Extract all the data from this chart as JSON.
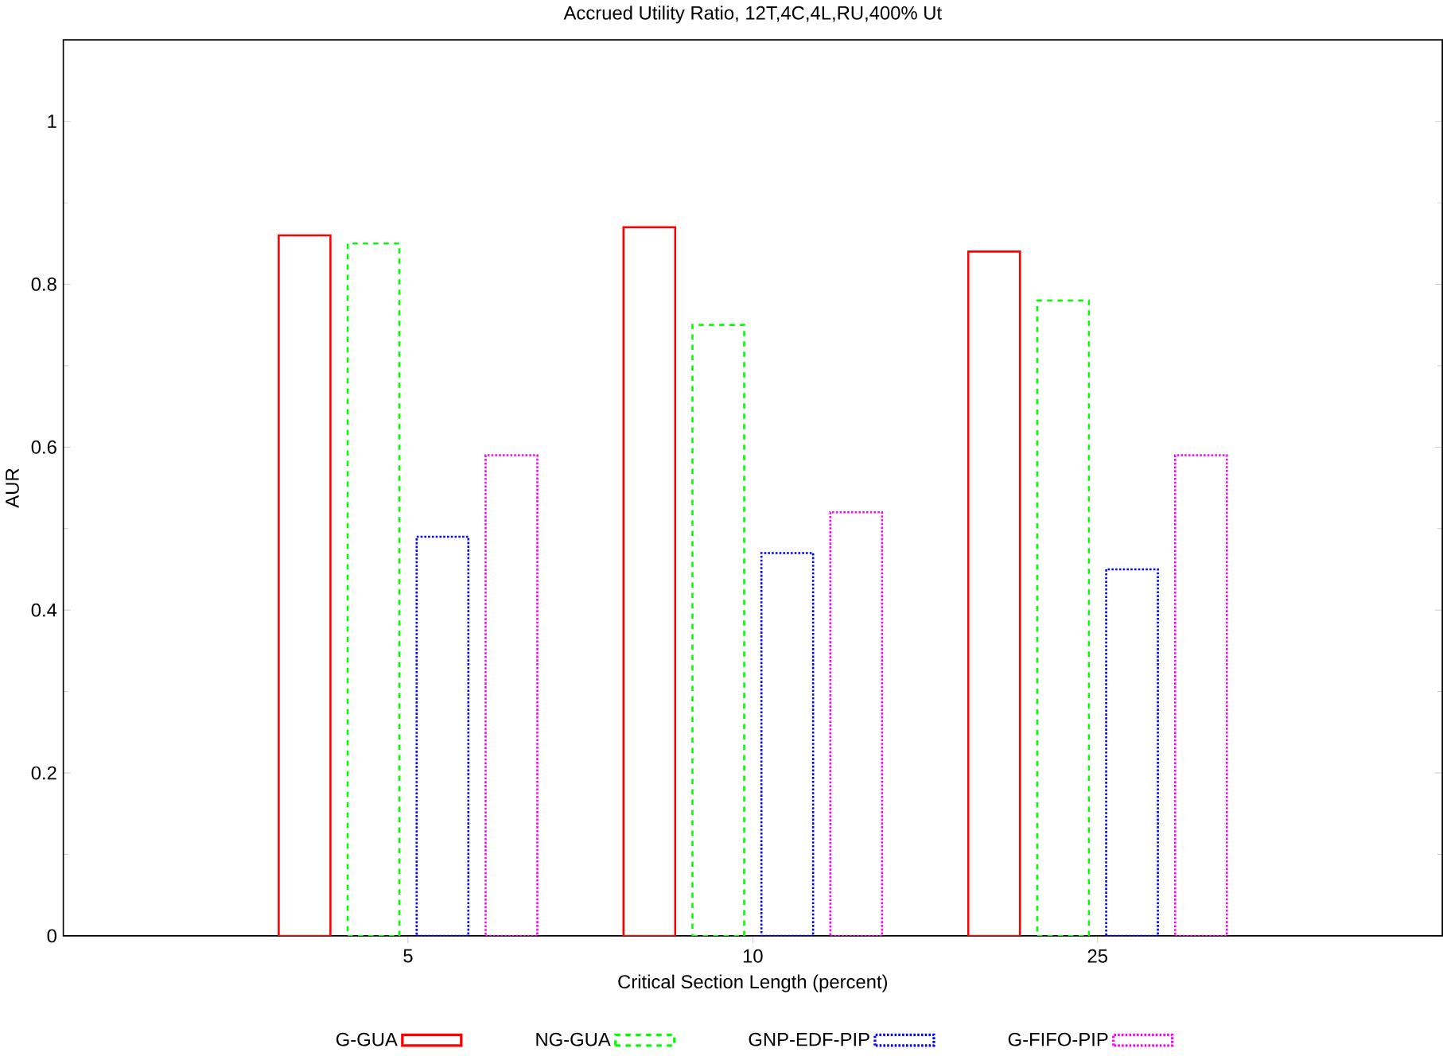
{
  "chart_data": {
    "type": "bar",
    "title": "Accrued Utility Ratio, 12T,4C,4L,RU,400% Ut",
    "xlabel": "Critical Section Length (percent)",
    "ylabel": "AUR",
    "categories": [
      "5",
      "10",
      "25"
    ],
    "series": [
      {
        "name": "G-GUA",
        "color": "#ff0000",
        "line_style": "solid",
        "values": [
          0.86,
          0.87,
          0.84
        ]
      },
      {
        "name": "NG-GUA",
        "color": "#00ff00",
        "line_style": "dashed",
        "values": [
          0.85,
          0.75,
          0.78
        ]
      },
      {
        "name": "GNP-EDF-PIP",
        "color": "#0000ff",
        "line_style": "dotted",
        "values": [
          0.49,
          0.47,
          0.45
        ]
      },
      {
        "name": "G-FIFO-PIP",
        "color": "#ff00ff",
        "line_style": "dotted",
        "values": [
          0.59,
          0.52,
          0.59
        ]
      }
    ],
    "ylim": [
      0,
      1.1
    ],
    "yticks": [
      0,
      0.2,
      0.4,
      0.6,
      0.8,
      1
    ],
    "grid": false,
    "legend": "bottom"
  }
}
